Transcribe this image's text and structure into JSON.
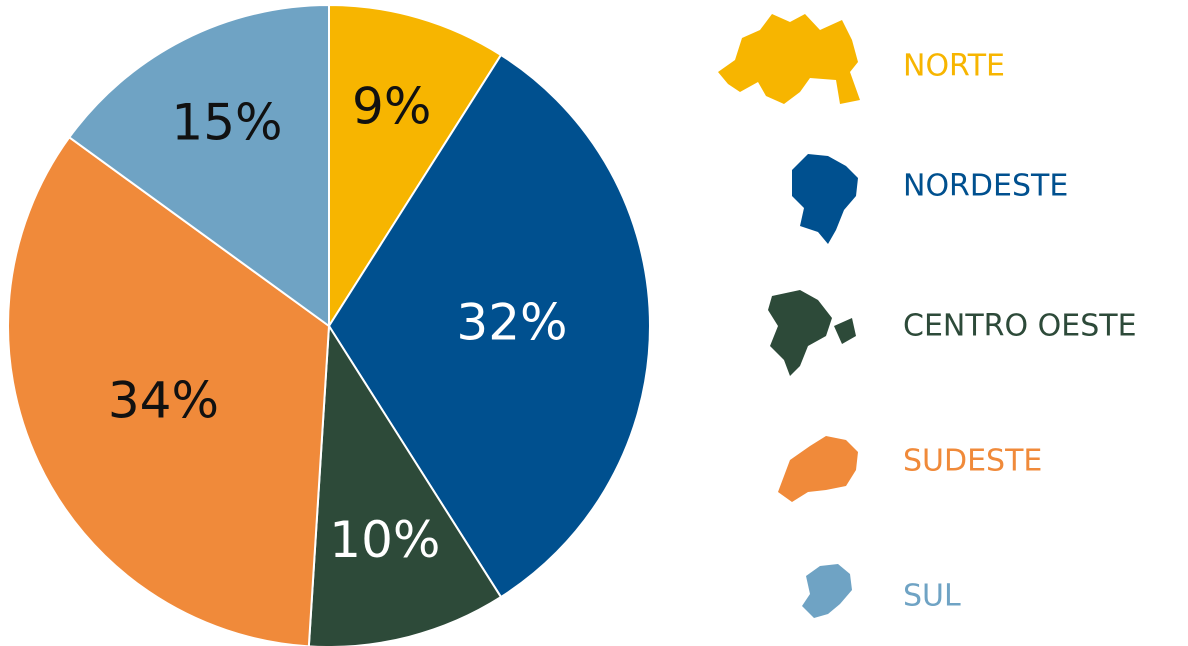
{
  "chart_data": {
    "type": "pie",
    "categories": [
      "NORTE",
      "NORDESTE",
      "CENTRO OESTE",
      "SUDESTE",
      "SUL"
    ],
    "values": [
      9,
      32,
      10,
      34,
      15
    ],
    "value_labels": [
      "9%",
      "32%",
      "10%",
      "34%",
      "15%"
    ],
    "colors": [
      "#f7b500",
      "#00508f",
      "#2d4a39",
      "#f08a3a",
      "#6fa3c4"
    ]
  }
}
